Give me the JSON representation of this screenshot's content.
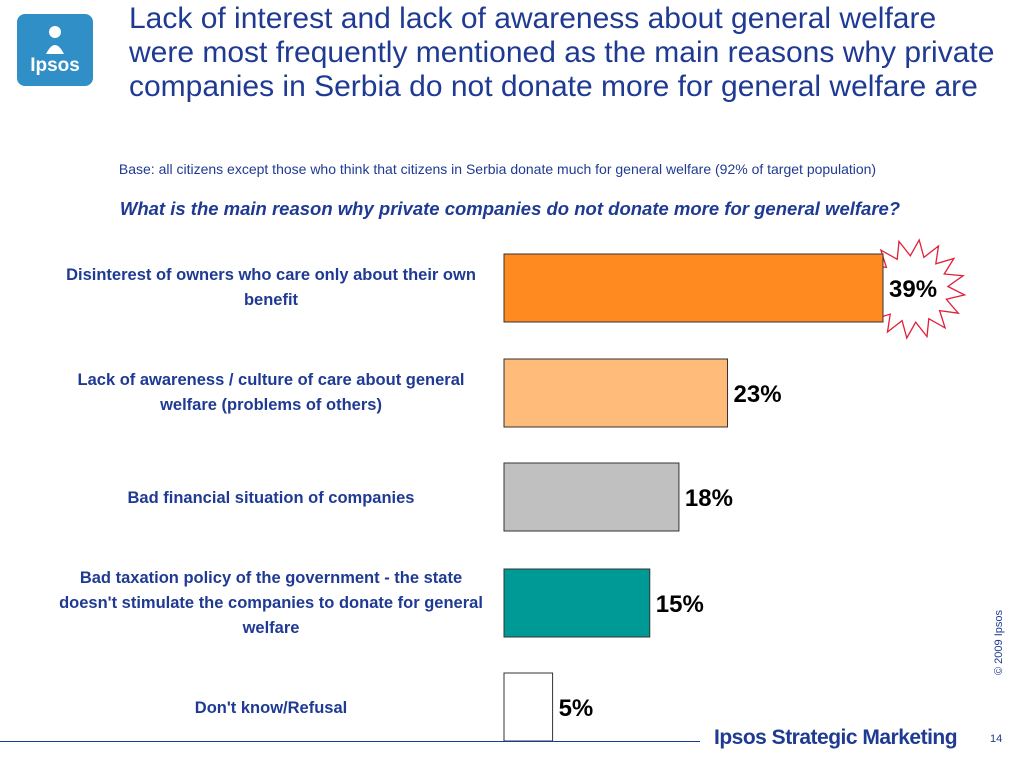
{
  "logo": {
    "text": "Ipsos"
  },
  "header": {
    "title": "Lack of interest and lack of awareness about general welfare were most frequently mentioned as the main reasons why private companies in Serbia do not donate more for general welfare are",
    "base_note": "Base: all citizens except those who think that citizens in Serbia donate much for general welfare (92% of target population)"
  },
  "chart_data": {
    "type": "bar",
    "orientation": "horizontal",
    "title": "What is the main reason why private companies do not donate more for general welfare?",
    "categories": [
      "Disinterest of owners who care only about their own benefit",
      "Lack of awareness / culture of care about general welfare (problems of others)",
      "Bad financial situation of companies",
      "Bad taxation policy of the government - the state doesn't stimulate the companies to donate for general welfare",
      "Don't know/Refusal"
    ],
    "values": [
      39,
      23,
      18,
      15,
      5
    ],
    "value_labels": [
      "39%",
      "23%",
      "18%",
      "15%",
      "5%"
    ],
    "colors": [
      "#ff8a1f",
      "#ffbb7a",
      "#c0c0c0",
      "#009a96",
      "#ffffff"
    ],
    "highlight": "starburst on first bar",
    "xlim": [
      0,
      39
    ],
    "grid": false,
    "legend": "none"
  },
  "side_note": "© 2009 Ipsos",
  "footer": {
    "brand": "Ipsos Strategic Marketing",
    "page": "14"
  }
}
